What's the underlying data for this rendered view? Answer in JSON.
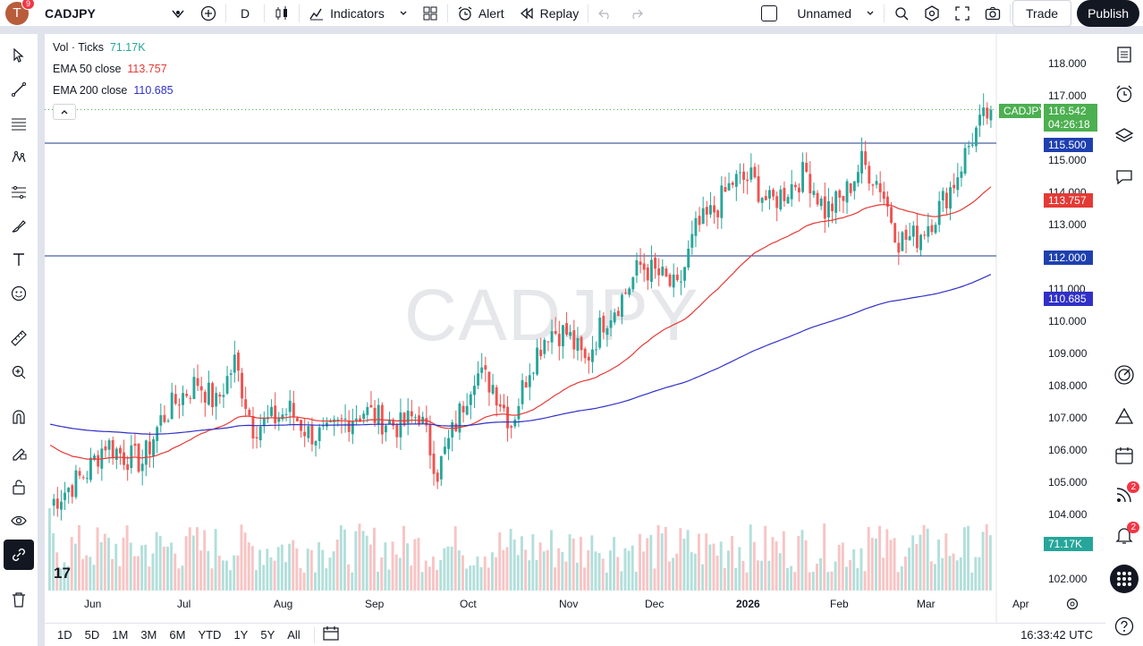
{
  "topbar": {
    "avatar_letter": "T",
    "notification_count": "9",
    "symbol": "CADJPY",
    "interval": "D",
    "indicators_label": "Indicators",
    "alert_label": "Alert",
    "replay_label": "Replay",
    "layout_name": "Unnamed",
    "trade_label": "Trade",
    "publish_label": "Publish"
  },
  "legend": {
    "vol_label": "Vol · Ticks",
    "vol_value": "71.17K",
    "ema50_label": "EMA 50 close",
    "ema50_value": "113.757",
    "ema200_label": "EMA 200 close",
    "ema200_value": "110.685"
  },
  "watermark": "CADJPY",
  "price_tags": {
    "symbol": "CADJPY",
    "last": "116.542",
    "countdown": "04:26:18",
    "hline_upper": "115.500",
    "ema50": "113.757",
    "hline_lower": "112.000",
    "ema200": "110.685",
    "volume": "71.17K"
  },
  "yaxis": [
    "118.000",
    "117.000",
    "115.000",
    "114.000",
    "113.000",
    "111.000",
    "110.000",
    "109.000",
    "108.000",
    "107.000",
    "106.000",
    "105.000",
    "104.000",
    "102.000"
  ],
  "xaxis": [
    "Jun",
    "Jul",
    "Aug",
    "Sep",
    "Oct",
    "Nov",
    "Dec",
    "2026",
    "Feb",
    "Mar",
    "Apr"
  ],
  "bottombar": {
    "ranges": [
      "1D",
      "5D",
      "1M",
      "3M",
      "6M",
      "YTD",
      "1Y",
      "5Y",
      "All"
    ],
    "clock": "16:33:42 UTC"
  },
  "right_badges": {
    "streams": "2",
    "alerts": "2"
  },
  "colors": {
    "up": "#26a69a",
    "down": "#ef5350",
    "ema50": "#e53935",
    "ema200": "#3030c8",
    "hline": "#1e3a8a",
    "volume_up": "#b2dfdb",
    "volume_down": "#f8c4c4"
  },
  "chart_data": {
    "type": "candlestick",
    "symbol": "CADJPY",
    "interval": "D",
    "ylim": [
      101.6,
      118.6
    ],
    "x_range": [
      "May",
      "Apr"
    ],
    "horizontal_lines": [
      115.5,
      112.0
    ],
    "last_price": 116.542,
    "closes_weekly": [
      104.3,
      104.8,
      105.3,
      106.2,
      105.8,
      105.6,
      106.9,
      107.6,
      108.1,
      107.4,
      108.7,
      106.7,
      106.9,
      107.2,
      106.5,
      106.4,
      106.9,
      107.2,
      106.9,
      106.7,
      107.1,
      105.3,
      106.8,
      108.4,
      108.0,
      106.8,
      108.6,
      109.7,
      109.6,
      108.7,
      110.0,
      110.7,
      111.7,
      111.4,
      110.9,
      112.8,
      113.4,
      114.3,
      114.4,
      113.6,
      114.1,
      114.6,
      113.4,
      113.8,
      114.9,
      114.2,
      112.5,
      112.6,
      113.3,
      114.3,
      115.7,
      116.54
    ],
    "ema50_close": 113.757,
    "ema200_close": 110.685,
    "volume_last": "71.17K"
  }
}
